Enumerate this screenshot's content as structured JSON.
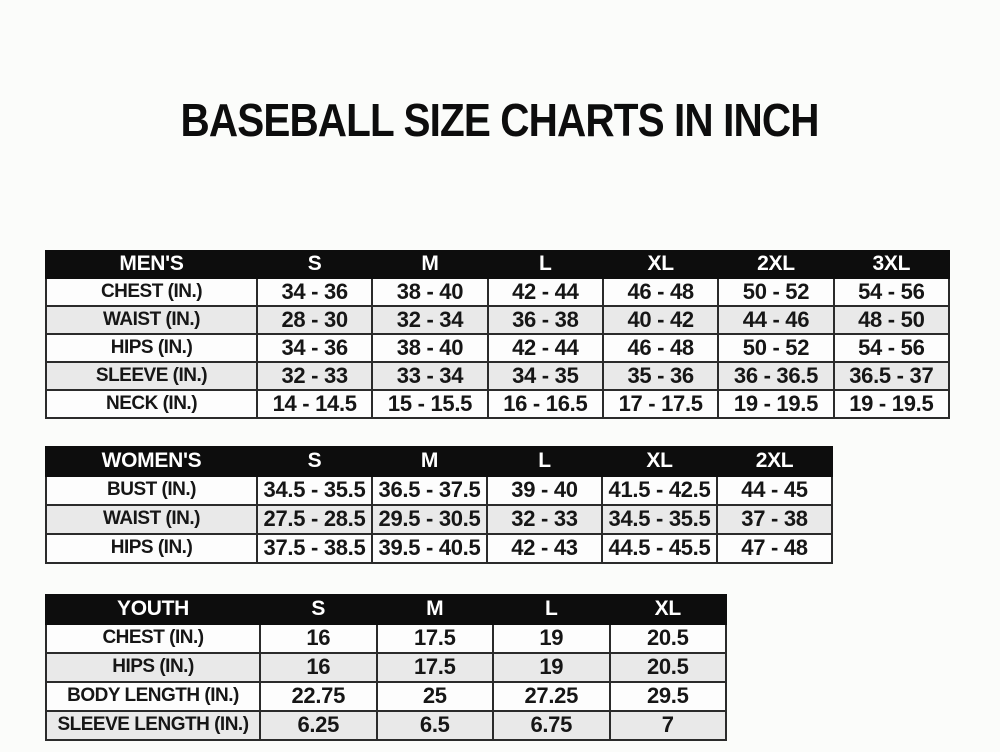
{
  "title": "BASEBALL SIZE CHARTS IN INCH",
  "colors": {
    "header_bg": "#0d0d0d",
    "header_text": "#ffffff",
    "row_bg": "#fdfdfd",
    "row_alt_bg": "#e9e9e9",
    "border": "#2b2b2b",
    "text": "#161616",
    "page_bg": "#fbfcfa"
  },
  "chart_data": [
    {
      "type": "table",
      "name": "mens-size-chart",
      "columns": [
        "MEN'S",
        "S",
        "M",
        "L",
        "XL",
        "2XL",
        "3XL"
      ],
      "rows": [
        [
          "CHEST (IN.)",
          "34 - 36",
          "38 - 40",
          "42 - 44",
          "46 - 48",
          "50 - 52",
          "54 - 56"
        ],
        [
          "WAIST (IN.)",
          "28 - 30",
          "32 - 34",
          "36 - 38",
          "40 - 42",
          "44 - 46",
          "48 - 50"
        ],
        [
          "HIPS (IN.)",
          "34 - 36",
          "38 - 40",
          "42 - 44",
          "46 - 48",
          "50 - 52",
          "54 - 56"
        ],
        [
          "SLEEVE (IN.)",
          "32 - 33",
          "33 - 34",
          "34 - 35",
          "35 - 36",
          "36 - 36.5",
          "36.5 - 37"
        ],
        [
          "NECK (IN.)",
          "14 - 14.5",
          "15 - 15.5",
          "16 - 16.5",
          "17 - 17.5",
          "19 - 19.5",
          "19 - 19.5"
        ]
      ]
    },
    {
      "type": "table",
      "name": "womens-size-chart",
      "columns": [
        "WOMEN'S",
        "S",
        "M",
        "L",
        "XL",
        "2XL"
      ],
      "rows": [
        [
          "BUST (IN.)",
          "34.5 - 35.5",
          "36.5 - 37.5",
          "39 - 40",
          "41.5 - 42.5",
          "44 - 45"
        ],
        [
          "WAIST (IN.)",
          "27.5 - 28.5",
          "29.5 - 30.5",
          "32 - 33",
          "34.5 - 35.5",
          "37 - 38"
        ],
        [
          "HIPS (IN.)",
          "37.5 - 38.5",
          "39.5 - 40.5",
          "42 - 43",
          "44.5 - 45.5",
          "47 - 48"
        ]
      ]
    },
    {
      "type": "table",
      "name": "youth-size-chart",
      "columns": [
        "YOUTH",
        "S",
        "M",
        "L",
        "XL"
      ],
      "rows": [
        [
          "CHEST (IN.)",
          "16",
          "17.5",
          "19",
          "20.5"
        ],
        [
          "HIPS (IN.)",
          "16",
          "17.5",
          "19",
          "20.5"
        ],
        [
          "BODY LENGTH (IN.)",
          "22.75",
          "25",
          "27.25",
          "29.5"
        ],
        [
          "SLEEVE LENGTH (IN.)",
          "6.25",
          "6.5",
          "6.75",
          "7"
        ]
      ]
    }
  ]
}
